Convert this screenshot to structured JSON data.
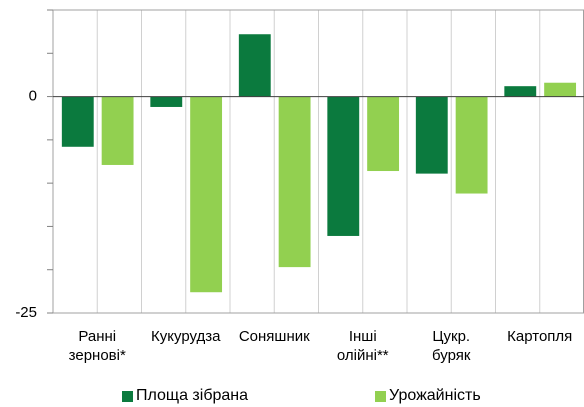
{
  "chart_data": {
    "type": "bar",
    "categories": [
      "Ранні\nзернові*",
      "Кукурудза",
      "Соняшник",
      "Інші\nолійні**",
      "Цукр.\nбуряк",
      "Картопля"
    ],
    "series": [
      {
        "name": "Площа зібрана",
        "color": "#0b7a3e",
        "values": [
          -5.8,
          -1.2,
          7.2,
          -16.1,
          -8.9,
          1.2
        ]
      },
      {
        "name": "Урожайність",
        "color": "#92d050",
        "values": [
          -7.9,
          -22.6,
          -19.7,
          -8.6,
          -11.2,
          1.6
        ]
      }
    ],
    "ylim": [
      -25,
      10
    ],
    "yticks": [
      -25,
      0
    ],
    "yminor_ticks": [
      -20,
      -15,
      -10,
      -5,
      5,
      10
    ],
    "legend": "bottom"
  }
}
